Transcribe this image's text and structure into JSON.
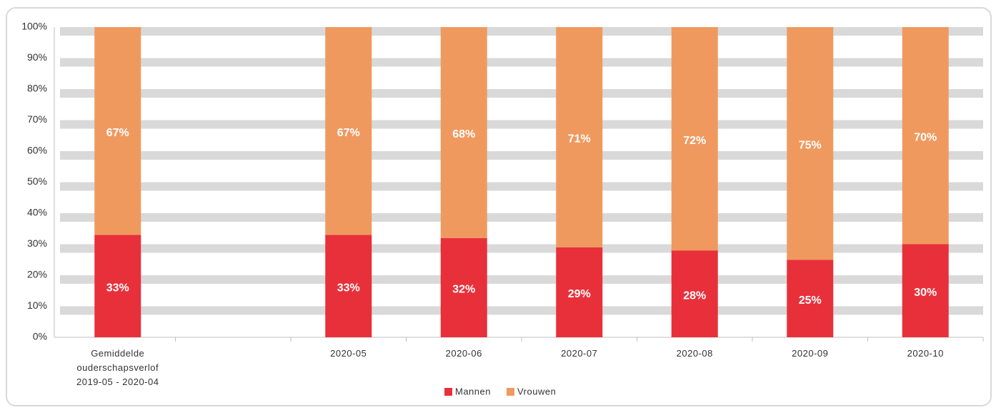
{
  "chart_data": {
    "type": "stacked_bar",
    "categories": [
      "Gemiddelde ouderschapsverlof 2019-05 - 2020-04",
      null,
      "2020-05",
      "2020-06",
      "2020-07",
      "2020-08",
      "2020-09",
      "2020-10"
    ],
    "series": [
      {
        "name": "Mannen",
        "color": "#e8303a",
        "values": [
          33,
          null,
          33,
          32,
          29,
          28,
          25,
          30
        ],
        "value_labels": [
          "33%",
          null,
          "33%",
          "32%",
          "29%",
          "28%",
          "25%",
          "30%"
        ]
      },
      {
        "name": "Vrouwen",
        "color": "#f0995f",
        "values": [
          67,
          null,
          67,
          68,
          71,
          72,
          75,
          70
        ],
        "value_labels": [
          "67%",
          null,
          "67%",
          "68%",
          "71%",
          "72%",
          "75%",
          "70%"
        ]
      }
    ],
    "ylim": [
      0,
      100
    ],
    "yticks": [
      {
        "value": 0,
        "label": "0%"
      },
      {
        "value": 10,
        "label": "10%"
      },
      {
        "value": 20,
        "label": "20%"
      },
      {
        "value": 30,
        "label": "30%"
      },
      {
        "value": 40,
        "label": "40%"
      },
      {
        "value": 50,
        "label": "50%"
      },
      {
        "value": 60,
        "label": "60%"
      },
      {
        "value": 70,
        "label": "70%"
      },
      {
        "value": 80,
        "label": "80%"
      },
      {
        "value": 90,
        "label": "90%"
      },
      {
        "value": 100,
        "label": "100%"
      }
    ],
    "grid": true,
    "legend": "bottom"
  }
}
